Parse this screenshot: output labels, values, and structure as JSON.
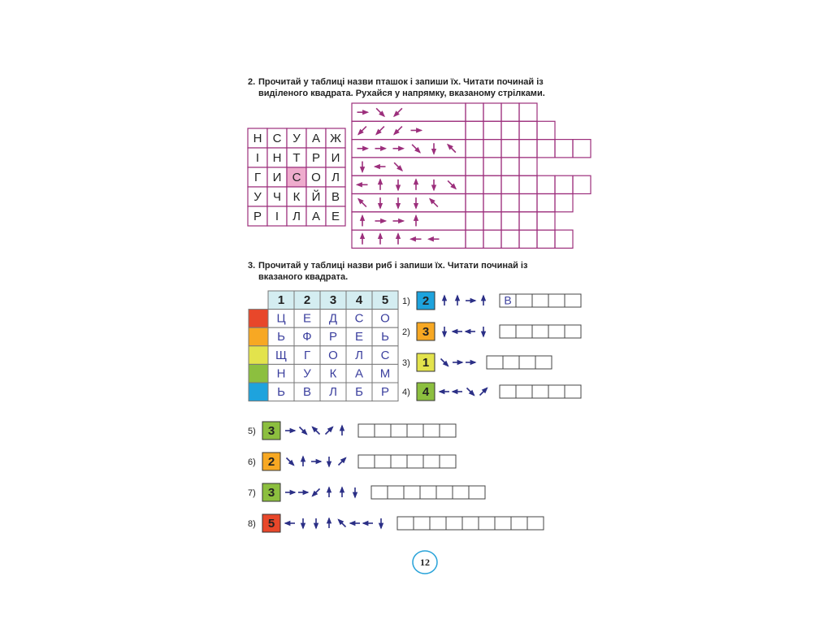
{
  "task2": {
    "number": "2.",
    "text_line1": "Прочитай у таблиці назви пташок і запиши їх. Читати починай із",
    "text_line2": "виділеного квадрата. Рухайся у напрямку, вказаному стрілками.",
    "grid": [
      [
        "Н",
        "С",
        "У",
        "А",
        "Ж"
      ],
      [
        "І",
        "Н",
        "Т",
        "Р",
        "И"
      ],
      [
        "Г",
        "И",
        "С",
        "О",
        "Л"
      ],
      [
        "У",
        "Ч",
        "К",
        "Й",
        "В"
      ],
      [
        "Р",
        "І",
        "Л",
        "А",
        "Е"
      ]
    ]
  },
  "task3": {
    "number": "3.",
    "text_line1": "Прочитай у таблиці назви риб і запиши їх. Читати починай із",
    "text_line2": "вказаного квадрата.",
    "header": [
      "1",
      "2",
      "3",
      "4",
      "5"
    ],
    "grid": [
      [
        "Ц",
        "Е",
        "Д",
        "С",
        "О"
      ],
      [
        "Ь",
        "Ф",
        "Р",
        "Е",
        "Ь"
      ],
      [
        "Щ",
        "Г",
        "О",
        "Л",
        "С"
      ],
      [
        "Н",
        "У",
        "К",
        "А",
        "М"
      ],
      [
        "Ь",
        "В",
        "Л",
        "Б",
        "Р"
      ]
    ],
    "items": [
      {
        "label": "1)",
        "start": "2",
        "answer_start": "В"
      },
      {
        "label": "2)",
        "start": "3"
      },
      {
        "label": "3)",
        "start": "1"
      },
      {
        "label": "4)",
        "start": "4"
      },
      {
        "label": "5)",
        "start": "3"
      },
      {
        "label": "6)",
        "start": "2"
      },
      {
        "label": "7)",
        "start": "3"
      },
      {
        "label": "8)",
        "start": "5"
      }
    ]
  },
  "page_number": "12"
}
